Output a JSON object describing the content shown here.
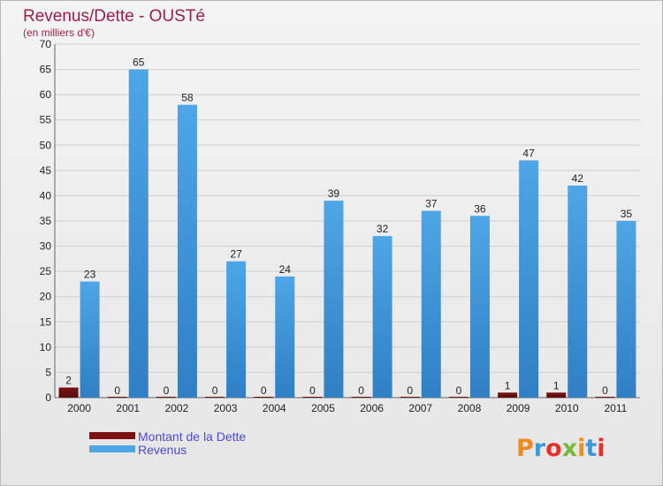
{
  "chart_data": {
    "type": "bar",
    "title": "Revenus/Dette - OUSTé",
    "subtitle": "(en milliers d'€)",
    "categories": [
      "2000",
      "2001",
      "2002",
      "2003",
      "2004",
      "2005",
      "2006",
      "2007",
      "2008",
      "2009",
      "2010",
      "2011"
    ],
    "series": [
      {
        "name": "Montant de la Dette",
        "color": "#7a1212",
        "values": [
          2,
          0,
          0,
          0,
          0,
          0,
          0,
          0,
          0,
          1,
          1,
          0
        ]
      },
      {
        "name": "Revenus",
        "color": "#4ea6e6",
        "values": [
          23,
          65,
          58,
          27,
          24,
          39,
          32,
          37,
          36,
          47,
          42,
          35
        ]
      }
    ],
    "ylim": [
      0,
      70
    ],
    "yticks": [
      0,
      5,
      10,
      15,
      20,
      25,
      30,
      35,
      40,
      45,
      50,
      55,
      60,
      65,
      70
    ],
    "grid": true,
    "legend_position": "bottom-left"
  },
  "branding": {
    "logo_text": "Proxiti",
    "logo_colors": [
      "#f08c1c",
      "#3a9bd8",
      "#e8302a",
      "#79b83a"
    ]
  }
}
